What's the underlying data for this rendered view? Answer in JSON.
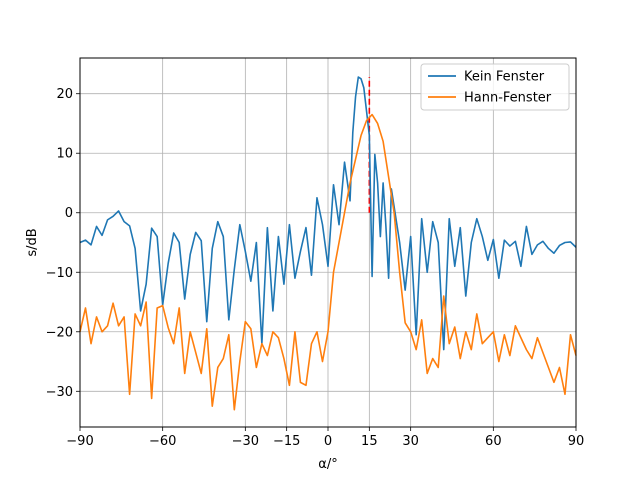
{
  "chart_data": {
    "type": "line",
    "xlabel": "α/°",
    "ylabel": "s/dB",
    "xlim": [
      -90,
      90
    ],
    "ylim": [
      -36,
      26
    ],
    "xticks": [
      -90,
      -60,
      -30,
      -15,
      0,
      15,
      30,
      60,
      90
    ],
    "xtick_labels": [
      "−90",
      "−60",
      "−30",
      "−15",
      "0",
      "15",
      "30",
      "60",
      "90"
    ],
    "yticks": [
      -30,
      -20,
      -10,
      0,
      10,
      20
    ],
    "ytick_labels": [
      "−30",
      "−20",
      "−10",
      "0",
      "10",
      "20"
    ],
    "grid": true,
    "legend_position": "upper right",
    "vline": {
      "x": 15,
      "y_from": 0,
      "y_to": 22.8,
      "color": "#ff0000",
      "style": "dashed"
    },
    "series": [
      {
        "name": "Kein Fenster",
        "color": "#1f77b4",
        "x": [
          -90,
          -88,
          -86,
          -84,
          -82,
          -80,
          -78,
          -76,
          -74,
          -72,
          -70,
          -68,
          -66,
          -64,
          -62,
          -60,
          -58,
          -56,
          -54,
          -52,
          -50,
          -48,
          -46,
          -44,
          -42,
          -40,
          -38,
          -36,
          -34,
          -32,
          -30,
          -28,
          -26,
          -24,
          -22,
          -20,
          -18,
          -16,
          -14,
          -12,
          -10,
          -8,
          -6,
          -4,
          -2,
          0,
          2,
          4,
          6,
          8,
          9,
          10,
          11,
          12,
          13,
          14,
          15,
          16,
          17,
          18,
          19,
          20,
          21,
          22,
          23,
          24,
          26,
          28,
          30,
          32,
          34,
          36,
          38,
          40,
          42,
          44,
          46,
          48,
          50,
          52,
          54,
          56,
          58,
          60,
          62,
          64,
          66,
          68,
          70,
          72,
          74,
          76,
          78,
          80,
          82,
          84,
          86,
          88,
          90
        ],
        "values": [
          -5,
          -4.6,
          -5.4,
          -2.3,
          -3.8,
          -1.2,
          -0.6,
          0.3,
          -1.5,
          -2.2,
          -6,
          -16.5,
          -12,
          -2.6,
          -4,
          -15.5,
          -8.5,
          -3.4,
          -5,
          -14.5,
          -7,
          -3.3,
          -4.7,
          -18.3,
          -6,
          -1.5,
          -4,
          -18,
          -9.5,
          -2,
          -6.5,
          -11.5,
          -5,
          -22,
          -2.5,
          -16.5,
          -4,
          -12,
          -2,
          -11,
          -6.5,
          -2.5,
          -10.5,
          2.5,
          -2,
          -9,
          4.7,
          -2,
          8.5,
          2,
          13.5,
          19.5,
          22.8,
          22.5,
          21,
          17,
          13,
          -10.7,
          9.8,
          5,
          -4,
          5,
          -2.2,
          -11,
          4,
          1,
          -5,
          -13,
          -4,
          -20.5,
          -1,
          -10,
          -1.5,
          -5,
          -23,
          -1,
          -9,
          -2.5,
          -14,
          -5,
          -1,
          -4,
          -8,
          -4.5,
          -11,
          -4.6,
          -5.6,
          -4.8,
          -9,
          -2.3,
          -7,
          -5.4,
          -4.8,
          -6,
          -6.8,
          -5.5,
          -5,
          -4.9,
          -5.8
        ]
      },
      {
        "name": "Hann-Fenster",
        "color": "#ff7f0e",
        "x": [
          -90,
          -88,
          -86,
          -84,
          -82,
          -80,
          -78,
          -76,
          -74,
          -72,
          -70,
          -68,
          -66,
          -64,
          -62,
          -60,
          -58,
          -56,
          -54,
          -52,
          -50,
          -48,
          -46,
          -44,
          -42,
          -40,
          -38,
          -36,
          -34,
          -32,
          -30,
          -28,
          -26,
          -24,
          -22,
          -20,
          -18,
          -16,
          -14,
          -12,
          -10,
          -8,
          -6,
          -4,
          -2,
          0,
          2,
          4,
          6,
          8,
          10,
          12,
          14,
          16,
          18,
          20,
          22,
          24,
          26,
          28,
          30,
          32,
          34,
          36,
          38,
          40,
          42,
          44,
          46,
          48,
          50,
          52,
          54,
          56,
          58,
          60,
          62,
          64,
          66,
          68,
          70,
          72,
          74,
          76,
          78,
          80,
          82,
          84,
          86,
          88,
          90
        ],
        "values": [
          -20,
          -16,
          -22,
          -17.5,
          -20,
          -19,
          -15.2,
          -19,
          -17.5,
          -30.5,
          -17,
          -19,
          -15,
          -31.2,
          -16,
          -15.6,
          -19.3,
          -22,
          -16,
          -27,
          -20,
          -23.5,
          -27,
          -19.5,
          -32.5,
          -26,
          -24.5,
          -20.5,
          -33.1,
          -25,
          -18.3,
          -19.5,
          -26,
          -22,
          -24,
          -20,
          -21,
          -24.5,
          -29,
          -20,
          -28.5,
          -29,
          -22,
          -20,
          -25,
          -20,
          -10,
          -5,
          0,
          5,
          9,
          13,
          15.5,
          16.5,
          15,
          12,
          6,
          0,
          -10,
          -18.5,
          -20,
          -23,
          -18,
          -27,
          -24.5,
          -26,
          -14,
          -22,
          -19.2,
          -24.5,
          -20,
          -23,
          -17,
          -22,
          -21,
          -20,
          -25,
          -20.5,
          -24,
          -19,
          -21,
          -23,
          -24.5,
          -21,
          -23.5,
          -26,
          -28.5,
          -26,
          -30.5,
          -20.5,
          -24
        ]
      }
    ]
  }
}
